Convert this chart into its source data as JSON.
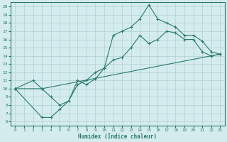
{
  "xlabel": "Humidex (Indice chaleur)",
  "bg_color": "#d4ecee",
  "grid_color": "#b0d0d2",
  "line_color": "#2a7a6a",
  "xlim": [
    -0.5,
    23.5
  ],
  "ylim": [
    5.5,
    20.5
  ],
  "xticks": [
    0,
    1,
    2,
    3,
    4,
    5,
    6,
    7,
    8,
    9,
    10,
    11,
    12,
    13,
    14,
    15,
    16,
    17,
    18,
    19,
    20,
    21,
    22,
    23
  ],
  "yticks": [
    6,
    7,
    8,
    9,
    10,
    11,
    12,
    13,
    14,
    15,
    16,
    17,
    18,
    19,
    20
  ],
  "line1_x": [
    0,
    2,
    3,
    4,
    5,
    6,
    7,
    8,
    9,
    10,
    11,
    12,
    13,
    14,
    15,
    16,
    17,
    18,
    19,
    20,
    21,
    22,
    23
  ],
  "line1_y": [
    10,
    11,
    10,
    9,
    8,
    8.5,
    10.5,
    11,
    12,
    12.5,
    16.5,
    17,
    17.5,
    18.5,
    20.2,
    18.5,
    18,
    17.5,
    16.5,
    16.5,
    15.8,
    14.5,
    14.2
  ],
  "line2_x": [
    0,
    3,
    4,
    5,
    6,
    7,
    8,
    9,
    10,
    11,
    12,
    13,
    14,
    15,
    16,
    17,
    18,
    19,
    20,
    21,
    22,
    23
  ],
  "line2_y": [
    10,
    6.5,
    6.5,
    7.5,
    8.5,
    11,
    10.5,
    11.2,
    12.5,
    13.5,
    13.8,
    15,
    16.5,
    15.5,
    16,
    17,
    16.8,
    16,
    16,
    14.5,
    14,
    14.2
  ],
  "line3_x": [
    0,
    3,
    22,
    23
  ],
  "line3_y": [
    10,
    10,
    14,
    14.2
  ]
}
